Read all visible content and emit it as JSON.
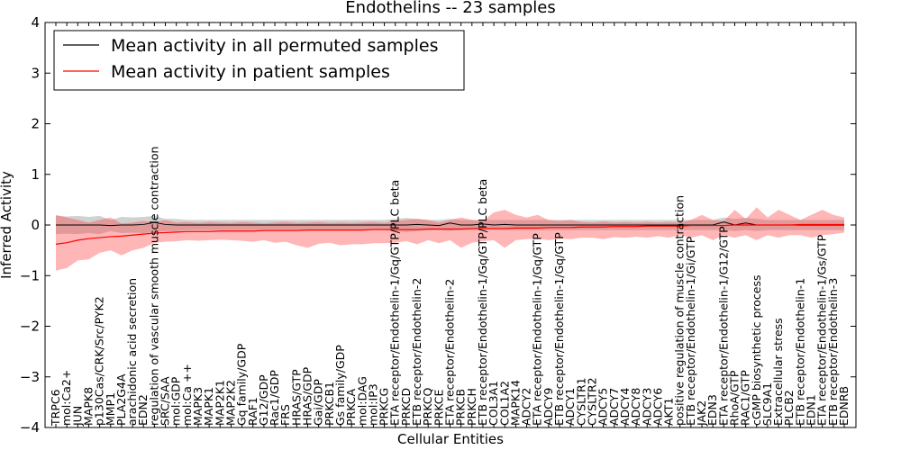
{
  "chart_data": {
    "type": "line",
    "title": "Endothelins -- 23 samples",
    "xlabel": "Cellular Entities",
    "ylabel": "Inferred Activity",
    "ylim": [
      -4,
      4
    ],
    "yticks": [
      -4,
      -3,
      -2,
      -1,
      0,
      1,
      2,
      3,
      4
    ],
    "legend": {
      "placement": "top-left",
      "entries": [
        {
          "label": "Mean activity in all permuted samples",
          "color": "#000000"
        },
        {
          "label": "Mean activity in patient samples",
          "color": "#ff0000"
        }
      ]
    },
    "categories": [
      "TRPC6",
      "mol:Ca2+",
      "JUN",
      "MAPK8",
      "p130Cas/CRK/Src/PYK2",
      "MMP1",
      "PLA2G4A",
      "arachidonic acid secretion",
      "EDN2",
      "regulation of vascular smooth muscle contraction",
      "SRC/SAA",
      "mol:GDP",
      "mol:Ca ++",
      "MAPK3",
      "MAPK1",
      "MAP2K1",
      "MAP2K2",
      "Gq family/GDP",
      "RAF1",
      "G12/GDP",
      "Rac1/GDP",
      "FRS",
      "HRAS/GTP",
      "HRAS/GDP",
      "Gai/GDP",
      "PRKCB1",
      "Gs family/GDP",
      "PRKCA",
      "mol:DAG",
      "mol:IP3",
      "PRKCG",
      "ETA receptor/Endothelin-1/Gq/GTP/PLC beta",
      "PRKCD",
      "ETB receptor/Endothelin-2",
      "PRKCQ",
      "PRKCE",
      "ETA receptor/Endothelin-2",
      "PRKCB",
      "PRKCH",
      "ETB receptor/Endothelin-1/Gq/GTP/PLC beta",
      "COL3A1",
      "COL1A2",
      "MAPK14",
      "ADCY2",
      "ETA receptor/Endothelin-1/Gq/GTP",
      "ADCY9",
      "ETB receptor/Endothelin-1/Gq/GTP",
      "ADCY1",
      "CYSLTR1",
      "CYSLTR2",
      "ADCY5",
      "ADCY7",
      "ADCY4",
      "ADCY8",
      "ADCY3",
      "ADCY6",
      "AKT1",
      "positive regulation of muscle contraction",
      "ETB receptor/Endothelin-1/Gi/GTP",
      "JAK2",
      "EDN3",
      "ETA receptor/Endothelin-1/G12/GTP",
      "RhoA/GTP",
      "RAC1/GTP",
      "cGMP biosynthetic process",
      "SLC9A1",
      "Extracellular stress",
      "PLCB2",
      "ETB receptor/Endothelin-1",
      "EDN1",
      "ETA receptor/Endothelin-1/Gs/GTP",
      "ETB receptor/Endothelin-3",
      "EDNRB"
    ],
    "series": [
      {
        "name": "Mean activity in all permuted samples",
        "color": "#000000",
        "values": [
          0.0,
          0.0,
          0.0,
          0.0,
          0.0,
          -0.01,
          0.0,
          0.0,
          0.01,
          0.05,
          0.01,
          0.0,
          0.0,
          0.0,
          0.0,
          0.0,
          0.0,
          0.0,
          0.0,
          0.0,
          0.0,
          0.0,
          0.0,
          0.0,
          0.0,
          0.0,
          0.0,
          0.0,
          0.0,
          0.0,
          0.0,
          0.0,
          0.0,
          0.01,
          0.0,
          -0.01,
          0.04,
          0.0,
          0.0,
          0.02,
          0.0,
          0.01,
          0.0,
          0.0,
          0.0,
          0.0,
          0.0,
          0.0,
          0.0,
          0.0,
          0.0,
          0.0,
          0.0,
          0.0,
          0.0,
          0.0,
          0.0,
          0.0,
          0.0,
          0.0,
          0.0,
          0.06,
          0.0,
          0.04,
          0.0,
          0.0,
          0.0,
          0.0,
          0.0,
          0.0,
          0.0,
          0.0,
          0.0
        ],
        "band_upper": [
          0.18,
          0.17,
          0.18,
          0.16,
          0.18,
          0.1,
          0.16,
          0.15,
          0.16,
          0.18,
          0.12,
          0.12,
          0.1,
          0.1,
          0.1,
          0.1,
          0.1,
          0.1,
          0.1,
          0.1,
          0.1,
          0.1,
          0.1,
          0.1,
          0.1,
          0.1,
          0.1,
          0.1,
          0.1,
          0.1,
          0.1,
          0.12,
          0.14,
          0.12,
          0.1,
          0.1,
          0.12,
          0.1,
          0.1,
          0.1,
          0.1,
          0.1,
          0.1,
          0.1,
          0.1,
          0.1,
          0.1,
          0.1,
          0.1,
          0.1,
          0.1,
          0.1,
          0.1,
          0.1,
          0.1,
          0.1,
          0.1,
          0.1,
          0.1,
          0.1,
          0.1,
          0.15,
          0.12,
          0.14,
          0.12,
          0.1,
          0.1,
          0.1,
          0.1,
          0.1,
          0.1,
          0.1,
          0.1
        ],
        "band_lower": [
          -0.18,
          -0.17,
          -0.18,
          -0.16,
          -0.18,
          -0.12,
          -0.16,
          -0.15,
          -0.16,
          -0.14,
          -0.12,
          -0.12,
          -0.1,
          -0.1,
          -0.1,
          -0.1,
          -0.1,
          -0.1,
          -0.1,
          -0.1,
          -0.1,
          -0.1,
          -0.1,
          -0.1,
          -0.1,
          -0.1,
          -0.1,
          -0.1,
          -0.1,
          -0.1,
          -0.1,
          -0.12,
          -0.14,
          -0.12,
          -0.1,
          -0.1,
          -0.12,
          -0.1,
          -0.1,
          -0.1,
          -0.1,
          -0.1,
          -0.1,
          -0.1,
          -0.1,
          -0.1,
          -0.1,
          -0.1,
          -0.1,
          -0.1,
          -0.1,
          -0.1,
          -0.1,
          -0.1,
          -0.1,
          -0.1,
          -0.1,
          -0.1,
          -0.1,
          -0.1,
          -0.1,
          -0.1,
          -0.12,
          -0.1,
          -0.12,
          -0.1,
          -0.1,
          -0.1,
          -0.1,
          -0.1,
          -0.1,
          -0.1,
          -0.1
        ]
      },
      {
        "name": "Mean activity in patient samples",
        "color": "#ff0000",
        "values": [
          -0.38,
          -0.35,
          -0.3,
          -0.27,
          -0.25,
          -0.23,
          -0.22,
          -0.2,
          -0.18,
          -0.16,
          -0.15,
          -0.14,
          -0.13,
          -0.13,
          -0.13,
          -0.12,
          -0.12,
          -0.12,
          -0.12,
          -0.11,
          -0.11,
          -0.11,
          -0.11,
          -0.1,
          -0.1,
          -0.1,
          -0.1,
          -0.1,
          -0.1,
          -0.09,
          -0.09,
          -0.09,
          -0.09,
          -0.09,
          -0.08,
          -0.08,
          -0.08,
          -0.08,
          -0.07,
          -0.07,
          -0.07,
          -0.07,
          -0.06,
          -0.06,
          -0.06,
          -0.05,
          -0.05,
          -0.05,
          -0.04,
          -0.04,
          -0.04,
          -0.03,
          -0.03,
          -0.03,
          -0.02,
          -0.02,
          -0.02,
          -0.02,
          -0.01,
          -0.01,
          -0.01,
          -0.01,
          0.0,
          0.0,
          0.0,
          0.0,
          0.0,
          0.0,
          0.01,
          0.01,
          0.01,
          0.01,
          0.01
        ],
        "band_upper": [
          0.2,
          0.15,
          0.1,
          0.05,
          0.1,
          0.15,
          0.03,
          0.05,
          0.08,
          0.05,
          0.1,
          0.05,
          0.06,
          0.04,
          0.06,
          0.05,
          0.04,
          0.06,
          0.05,
          0.03,
          0.05,
          0.06,
          0.04,
          0.05,
          0.06,
          0.04,
          0.05,
          0.04,
          0.05,
          0.06,
          0.04,
          0.08,
          0.1,
          0.12,
          0.1,
          0.05,
          0.1,
          0.15,
          0.1,
          0.08,
          0.25,
          0.3,
          0.2,
          0.15,
          0.2,
          0.1,
          0.08,
          0.1,
          0.06,
          0.05,
          0.07,
          0.05,
          0.06,
          0.05,
          0.06,
          0.05,
          0.06,
          0.05,
          0.1,
          0.2,
          0.1,
          0.08,
          0.3,
          0.12,
          0.35,
          0.15,
          0.3,
          0.2,
          0.1,
          0.2,
          0.3,
          0.2,
          0.15
        ],
        "band_lower": [
          -0.9,
          -0.85,
          -0.7,
          -0.68,
          -0.55,
          -0.5,
          -0.6,
          -0.5,
          -0.45,
          -0.35,
          -0.33,
          -0.32,
          -0.3,
          -0.31,
          -0.3,
          -0.29,
          -0.3,
          -0.31,
          -0.33,
          -0.3,
          -0.35,
          -0.33,
          -0.4,
          -0.45,
          -0.37,
          -0.35,
          -0.4,
          -0.38,
          -0.38,
          -0.36,
          -0.36,
          -0.35,
          -0.32,
          -0.38,
          -0.3,
          -0.36,
          -0.3,
          -0.45,
          -0.35,
          -0.32,
          -0.3,
          -0.45,
          -0.3,
          -0.28,
          -0.27,
          -0.3,
          -0.27,
          -0.28,
          -0.25,
          -0.25,
          -0.28,
          -0.24,
          -0.25,
          -0.23,
          -0.25,
          -0.22,
          -0.25,
          -0.2,
          -0.25,
          -0.2,
          -0.3,
          -0.2,
          -0.25,
          -0.2,
          -0.3,
          -0.2,
          -0.25,
          -0.2,
          -0.2,
          -0.25,
          -0.2,
          -0.18,
          -0.15
        ]
      }
    ]
  }
}
